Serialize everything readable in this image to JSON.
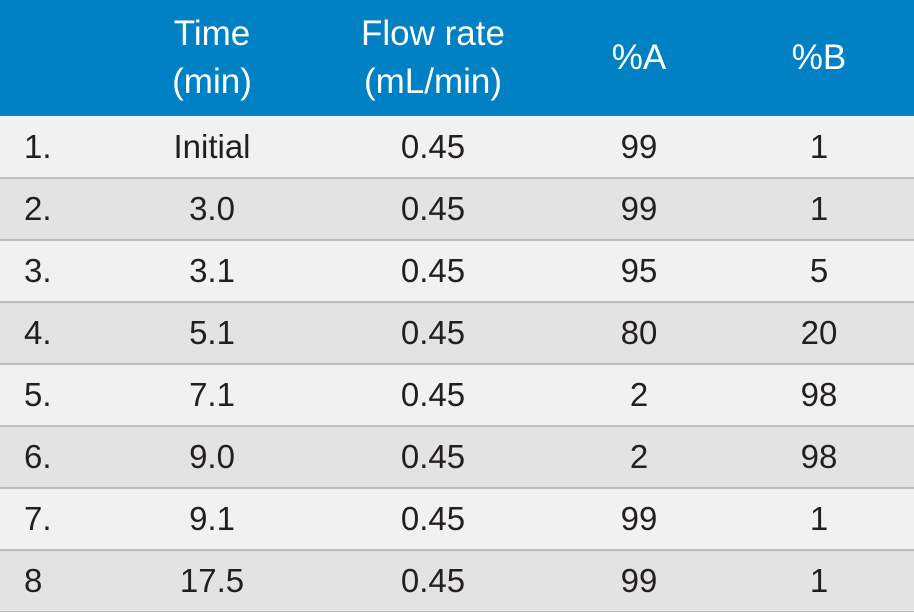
{
  "table": {
    "headers": {
      "step": "",
      "time": [
        "Time",
        "(min)"
      ],
      "flow": [
        "Flow rate",
        "(mL/min)"
      ],
      "a": "%A",
      "b": "%B"
    },
    "rows": [
      {
        "step": "1.",
        "time": "Initial",
        "flow": "0.45",
        "a": "99",
        "b": "1"
      },
      {
        "step": "2.",
        "time": "3.0",
        "flow": "0.45",
        "a": "99",
        "b": "1"
      },
      {
        "step": "3.",
        "time": "3.1",
        "flow": "0.45",
        "a": "95",
        "b": "5"
      },
      {
        "step": "4.",
        "time": "5.1",
        "flow": "0.45",
        "a": "80",
        "b": "20"
      },
      {
        "step": "5.",
        "time": "7.1",
        "flow": "0.45",
        "a": "2",
        "b": "98"
      },
      {
        "step": "6.",
        "time": "9.0",
        "flow": "0.45",
        "a": "2",
        "b": "98"
      },
      {
        "step": "7.",
        "time": "9.1",
        "flow": "0.45",
        "a": "99",
        "b": "1"
      },
      {
        "step": "8",
        "time": "17.5",
        "flow": "0.45",
        "a": "99",
        "b": "1"
      }
    ]
  },
  "colors": {
    "header_bg": "#0081c4",
    "header_text": "#ffffff",
    "row_light": "#f2f1f2",
    "row_dark": "#e4e3e4",
    "text": "#231f20"
  }
}
